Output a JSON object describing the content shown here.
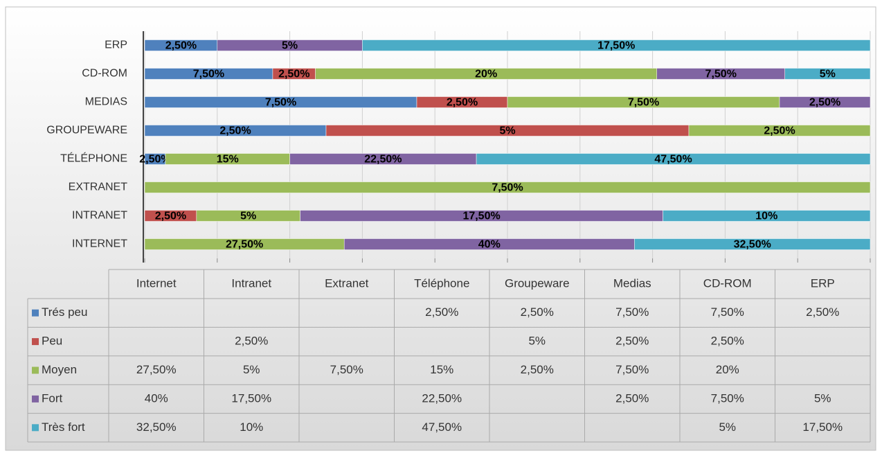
{
  "chart_data": {
    "type": "bar",
    "orientation": "horizontal",
    "stacking": "percent",
    "categories": [
      "INTERNET",
      "INTRANET",
      "EXTRANET",
      "TÉLÉPHONE",
      "GROUPEWARE",
      "MEDIAS",
      "CD-ROM",
      "ERP"
    ],
    "table_columns": [
      "Internet",
      "Intranet",
      "Extranet",
      "Téléphone",
      "Groupeware",
      "Medias",
      "CD-ROM",
      "ERP"
    ],
    "series": [
      {
        "name": "Trés peu",
        "color": "#4f81bd",
        "values": [
          null,
          null,
          null,
          2.5,
          2.5,
          7.5,
          7.5,
          2.5
        ],
        "value_labels": [
          null,
          null,
          null,
          "2,50%",
          "2,50%",
          "7,50%",
          "7,50%",
          "2,50%"
        ]
      },
      {
        "name": "Peu",
        "color": "#c0504d",
        "values": [
          null,
          2.5,
          null,
          null,
          5,
          2.5,
          2.5,
          null
        ],
        "value_labels": [
          null,
          "2,50%",
          null,
          null,
          "5%",
          "2,50%",
          "2,50%",
          null
        ]
      },
      {
        "name": "Moyen",
        "color": "#9bbb59",
        "values": [
          27.5,
          5,
          7.5,
          15,
          2.5,
          7.5,
          20,
          null
        ],
        "value_labels": [
          "27,50%",
          "5%",
          "7,50%",
          "15%",
          "2,50%",
          "7,50%",
          "20%",
          null
        ]
      },
      {
        "name": "Fort",
        "color": "#8064a2",
        "values": [
          40,
          17.5,
          null,
          22.5,
          null,
          2.5,
          7.5,
          5
        ],
        "value_labels": [
          "40%",
          "17,50%",
          null,
          "22,50%",
          null,
          "2,50%",
          "7,50%",
          "5%"
        ]
      },
      {
        "name": "Très fort",
        "color": "#4bacc6",
        "values": [
          32.5,
          10,
          null,
          47.5,
          null,
          null,
          5,
          17.5
        ],
        "value_labels": [
          "32,50%",
          "10%",
          null,
          "47,50%",
          null,
          null,
          "5%",
          "17,50%"
        ]
      }
    ],
    "xlim": [
      0,
      100
    ],
    "xticks": [
      0,
      10,
      20,
      30,
      40,
      50,
      60,
      70,
      80,
      90,
      100
    ],
    "grid": true
  }
}
